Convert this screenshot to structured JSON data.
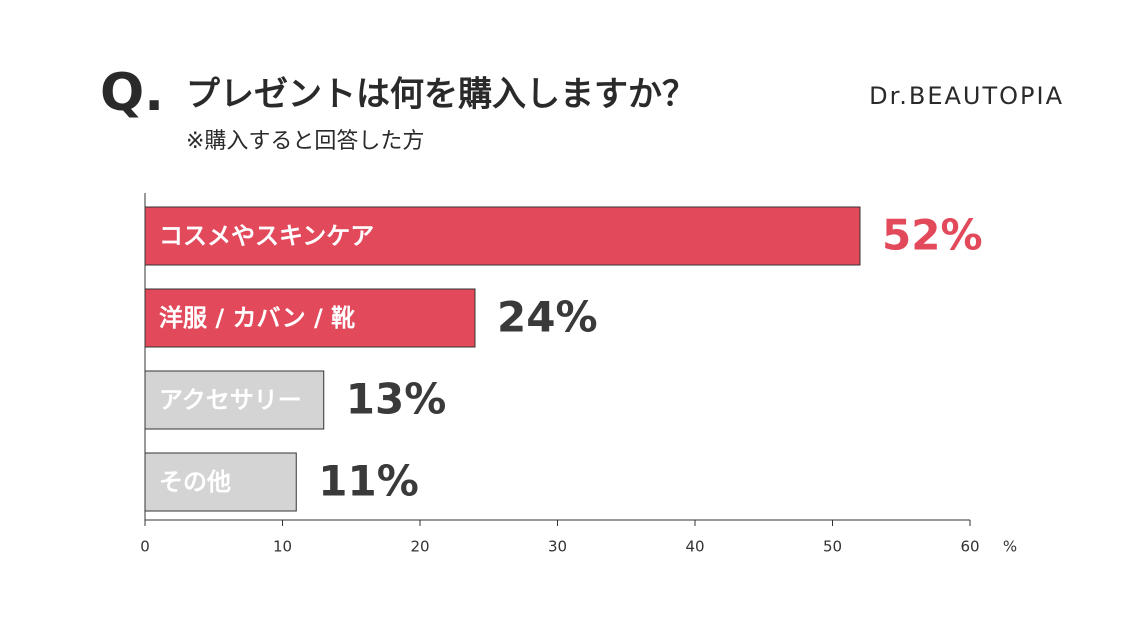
{
  "chart_data": {
    "type": "bar",
    "orientation": "horizontal",
    "title": "プレゼントは何を購入しますか？",
    "title_prefix": "Q.",
    "subtitle": "※購入すると回答した方",
    "brand": "Dr.BEAUTOPIA",
    "categories": [
      "コスメやスキンケア",
      "洋服 / カバン / 靴",
      "アクセサリー",
      "その他"
    ],
    "values": [
      52,
      24,
      13,
      11
    ],
    "value_labels": [
      "52%",
      "24%",
      "13%",
      "11%"
    ],
    "colors": [
      "#e2495a",
      "#e2495a",
      "#d4d4d4",
      "#d4d4d4"
    ],
    "value_label_colors": [
      "#e2495a",
      "#3a3a3a",
      "#3a3a3a",
      "#3a3a3a"
    ],
    "xlim": [
      0,
      60
    ],
    "xticks": [
      0,
      10,
      20,
      30,
      40,
      50,
      60
    ],
    "x_unit": "%"
  }
}
